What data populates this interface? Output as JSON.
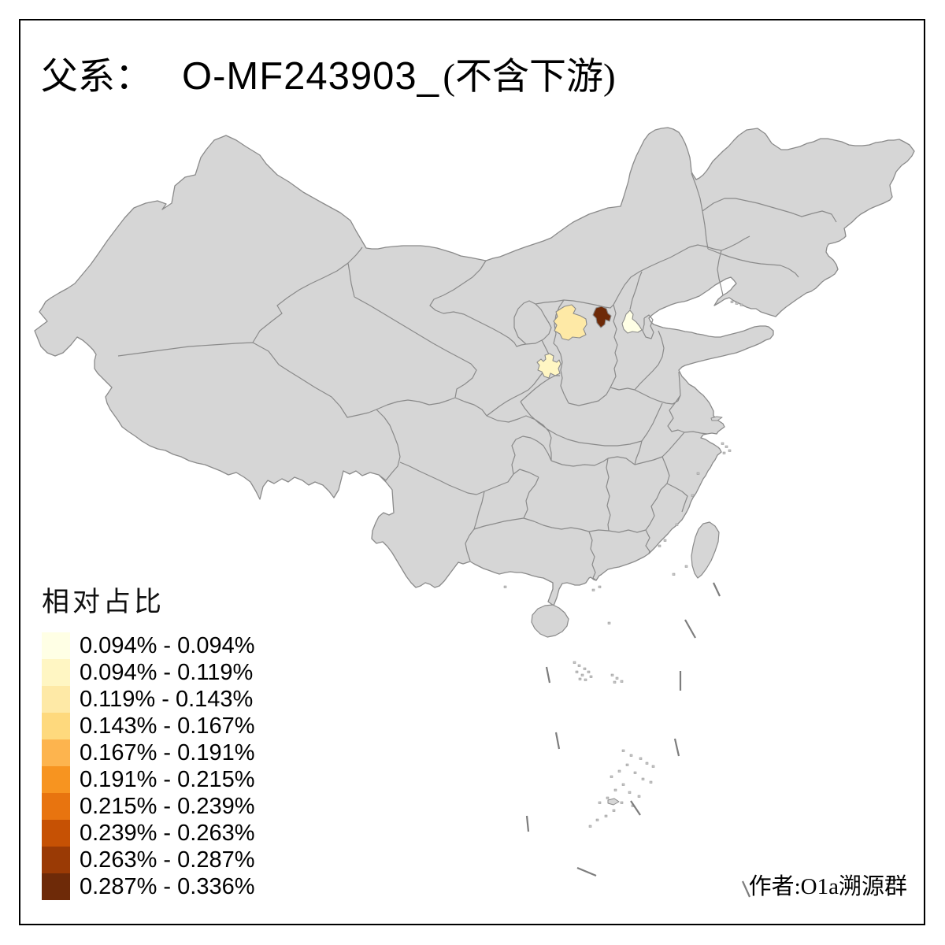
{
  "title": {
    "prefix": "父系：",
    "id": "O-MF243903_",
    "suffix": "(不含下游)"
  },
  "legend": {
    "title": "相对占比",
    "items": [
      {
        "label": "0.094% - 0.094%",
        "color": "#FFFFE5"
      },
      {
        "label": "0.094% - 0.119%",
        "color": "#FFF6C3"
      },
      {
        "label": "0.119% - 0.143%",
        "color": "#FEE9A6"
      },
      {
        "label": "0.143% - 0.167%",
        "color": "#FED97D"
      },
      {
        "label": "0.167% - 0.191%",
        "color": "#FDB44E"
      },
      {
        "label": "0.191% - 0.215%",
        "color": "#F79420"
      },
      {
        "label": "0.215% - 0.239%",
        "color": "#E8740F"
      },
      {
        "label": "0.239% - 0.263%",
        "color": "#C65104"
      },
      {
        "label": "0.263% - 0.287%",
        "color": "#9A3A05"
      },
      {
        "label": "0.287% - 0.336%",
        "color": "#6E2A08"
      }
    ]
  },
  "credit": "作者:O1a溯源群",
  "map": {
    "land_color": "#D6D6D6",
    "border_color": "#8A8A8A",
    "sea_color": "#FFFFFF",
    "frame_color": "#000000",
    "highlighted_regions": [
      {
        "id": "region-1",
        "value_range": "0.119% - 0.143%",
        "color": "#FEE9A6"
      },
      {
        "id": "region-2",
        "value_range": "0.287% - 0.336%",
        "color": "#6E2A08"
      },
      {
        "id": "region-3",
        "value_range": "0.094% - 0.094%",
        "color": "#FFFFE5"
      },
      {
        "id": "region-4",
        "value_range": "0.094% - 0.119%",
        "color": "#FFF6C3"
      }
    ]
  }
}
